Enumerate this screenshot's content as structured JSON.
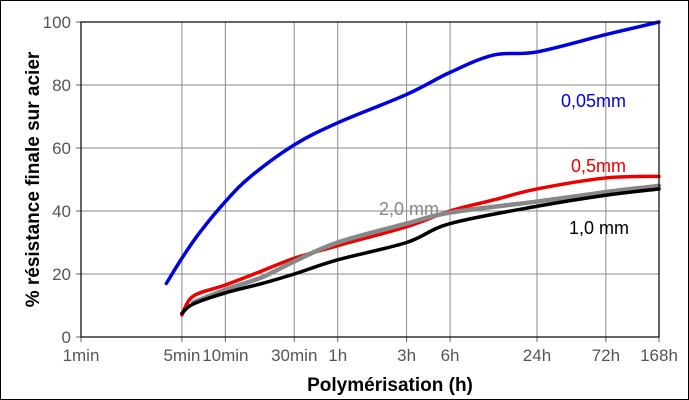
{
  "chart_data": {
    "type": "line",
    "xlabel": "Polymérisation (h)",
    "ylabel": "% résistance finale sur acier",
    "x_scale": "log",
    "x_ticks": [
      {
        "label": "1min",
        "hours": 0.01667
      },
      {
        "label": "5min",
        "hours": 0.08333
      },
      {
        "label": "10min",
        "hours": 0.16667
      },
      {
        "label": "30min",
        "hours": 0.5
      },
      {
        "label": "1h",
        "hours": 1
      },
      {
        "label": "3h",
        "hours": 3
      },
      {
        "label": "6h",
        "hours": 6
      },
      {
        "label": "24h",
        "hours": 24
      },
      {
        "label": "72h",
        "hours": 72
      },
      {
        "label": "168h",
        "hours": 168
      }
    ],
    "y_ticks": [
      "0",
      "20",
      "40",
      "60",
      "80",
      "100"
    ],
    "ylim": [
      0,
      100
    ],
    "grid": true,
    "series": [
      {
        "name": "0,05mm",
        "color": "#0000e0",
        "points": [
          [
            0.065,
            17
          ],
          [
            0.08333,
            25
          ],
          [
            0.11,
            33
          ],
          [
            0.16667,
            43
          ],
          [
            0.25,
            51
          ],
          [
            0.5,
            61
          ],
          [
            1,
            68
          ],
          [
            3,
            77
          ],
          [
            6,
            84
          ],
          [
            12,
            89.5
          ],
          [
            24,
            90.5
          ],
          [
            72,
            96
          ],
          [
            168,
            100
          ]
        ]
      },
      {
        "name": "0,5mm",
        "color": "#ee0000",
        "points": [
          [
            0.08333,
            7
          ],
          [
            0.1,
            13
          ],
          [
            0.16667,
            16.5
          ],
          [
            0.3,
            21
          ],
          [
            0.5,
            25
          ],
          [
            1,
            29
          ],
          [
            3,
            35
          ],
          [
            6,
            40
          ],
          [
            12,
            43.5
          ],
          [
            24,
            47
          ],
          [
            72,
            50.5
          ],
          [
            168,
            51
          ]
        ]
      },
      {
        "name": "2,0 mm",
        "color": "#888888",
        "points": [
          [
            0.1,
            11
          ],
          [
            0.16667,
            15
          ],
          [
            0.3,
            19
          ],
          [
            0.5,
            24
          ],
          [
            1,
            30
          ],
          [
            3,
            36
          ],
          [
            6,
            39.5
          ],
          [
            24,
            43
          ],
          [
            72,
            46
          ],
          [
            168,
            48
          ]
        ]
      },
      {
        "name": "1,0 mm",
        "color": "#000000",
        "points": [
          [
            0.08333,
            7.5
          ],
          [
            0.1,
            10.5
          ],
          [
            0.16667,
            14
          ],
          [
            0.3,
            17
          ],
          [
            0.5,
            20
          ],
          [
            1,
            24.5
          ],
          [
            3,
            30
          ],
          [
            6,
            36
          ],
          [
            24,
            41.5
          ],
          [
            72,
            45
          ],
          [
            168,
            47
          ]
        ]
      }
    ]
  }
}
